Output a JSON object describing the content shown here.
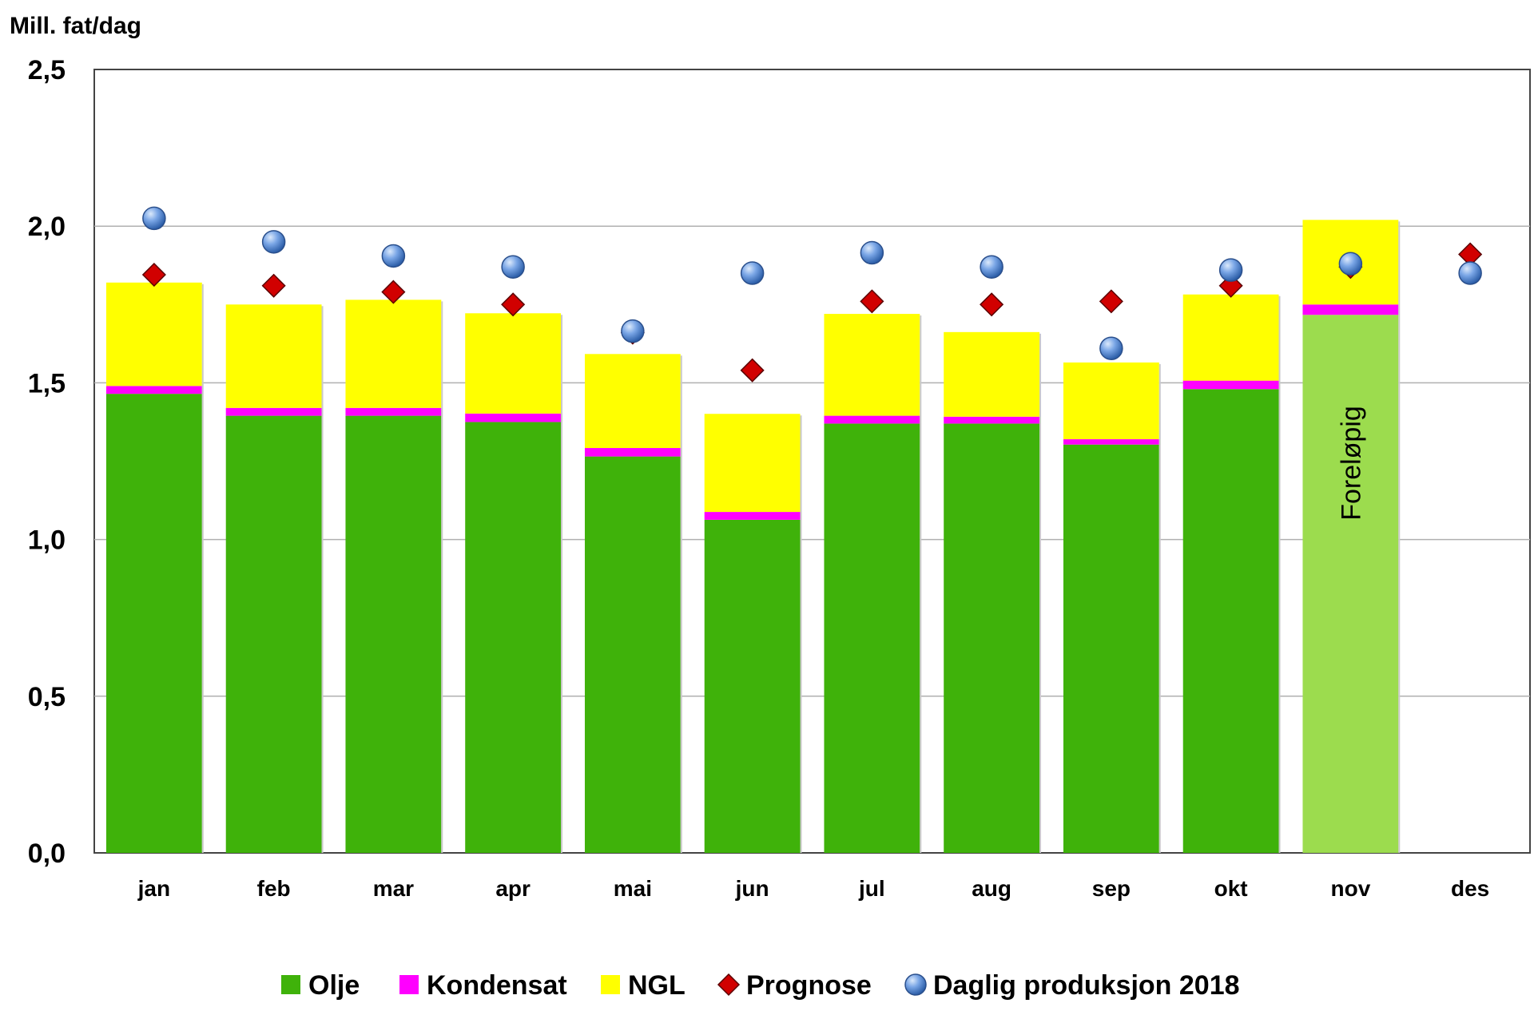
{
  "chart_data": {
    "type": "bar",
    "stacked": true,
    "ylabel": "Mill. fat/dag",
    "ylim": [
      0,
      2.5
    ],
    "y_ticks": [
      "0,0",
      "0,5",
      "1,0",
      "1,5",
      "2,0",
      "2,5"
    ],
    "y_tick_values": [
      0,
      0.5,
      1.0,
      1.5,
      2.0,
      2.5
    ],
    "grid": true,
    "legend_position": "bottom",
    "categories": [
      "jan",
      "feb",
      "mar",
      "apr",
      "mai",
      "jun",
      "jul",
      "aug",
      "sep",
      "okt",
      "nov",
      "des"
    ],
    "bar_series": [
      {
        "name": "Olje",
        "color": "#3fb20a",
        "values": [
          1.465,
          1.395,
          1.395,
          1.375,
          1.265,
          1.063,
          1.37,
          1.37,
          1.303,
          1.48,
          1.717,
          null
        ]
      },
      {
        "name": "Kondensat",
        "color": "#ff00ff",
        "values": [
          0.025,
          0.025,
          0.025,
          0.027,
          0.027,
          0.025,
          0.025,
          0.022,
          0.017,
          0.027,
          0.033,
          null
        ]
      },
      {
        "name": "NGL",
        "color": "#ffff00",
        "values": [
          0.33,
          0.33,
          0.345,
          0.32,
          0.3,
          0.313,
          0.325,
          0.27,
          0.245,
          0.275,
          0.27,
          null
        ]
      }
    ],
    "point_series": [
      {
        "name": "Prognose",
        "marker": "diamond",
        "color": "#d10000",
        "values": [
          1.845,
          1.81,
          1.79,
          1.75,
          1.66,
          1.54,
          1.76,
          1.75,
          1.76,
          1.81,
          1.87,
          1.91
        ]
      },
      {
        "name": "Daglig produksjon 2018",
        "marker": "circle",
        "color": "#5b8fd6",
        "values": [
          2.025,
          1.95,
          1.905,
          1.87,
          1.665,
          1.85,
          1.915,
          1.87,
          1.61,
          1.86,
          1.88,
          1.85
        ]
      }
    ],
    "highlight": {
      "category": "nov",
      "olje_color": "#9cdc4e",
      "label": "Foreløpig"
    }
  }
}
